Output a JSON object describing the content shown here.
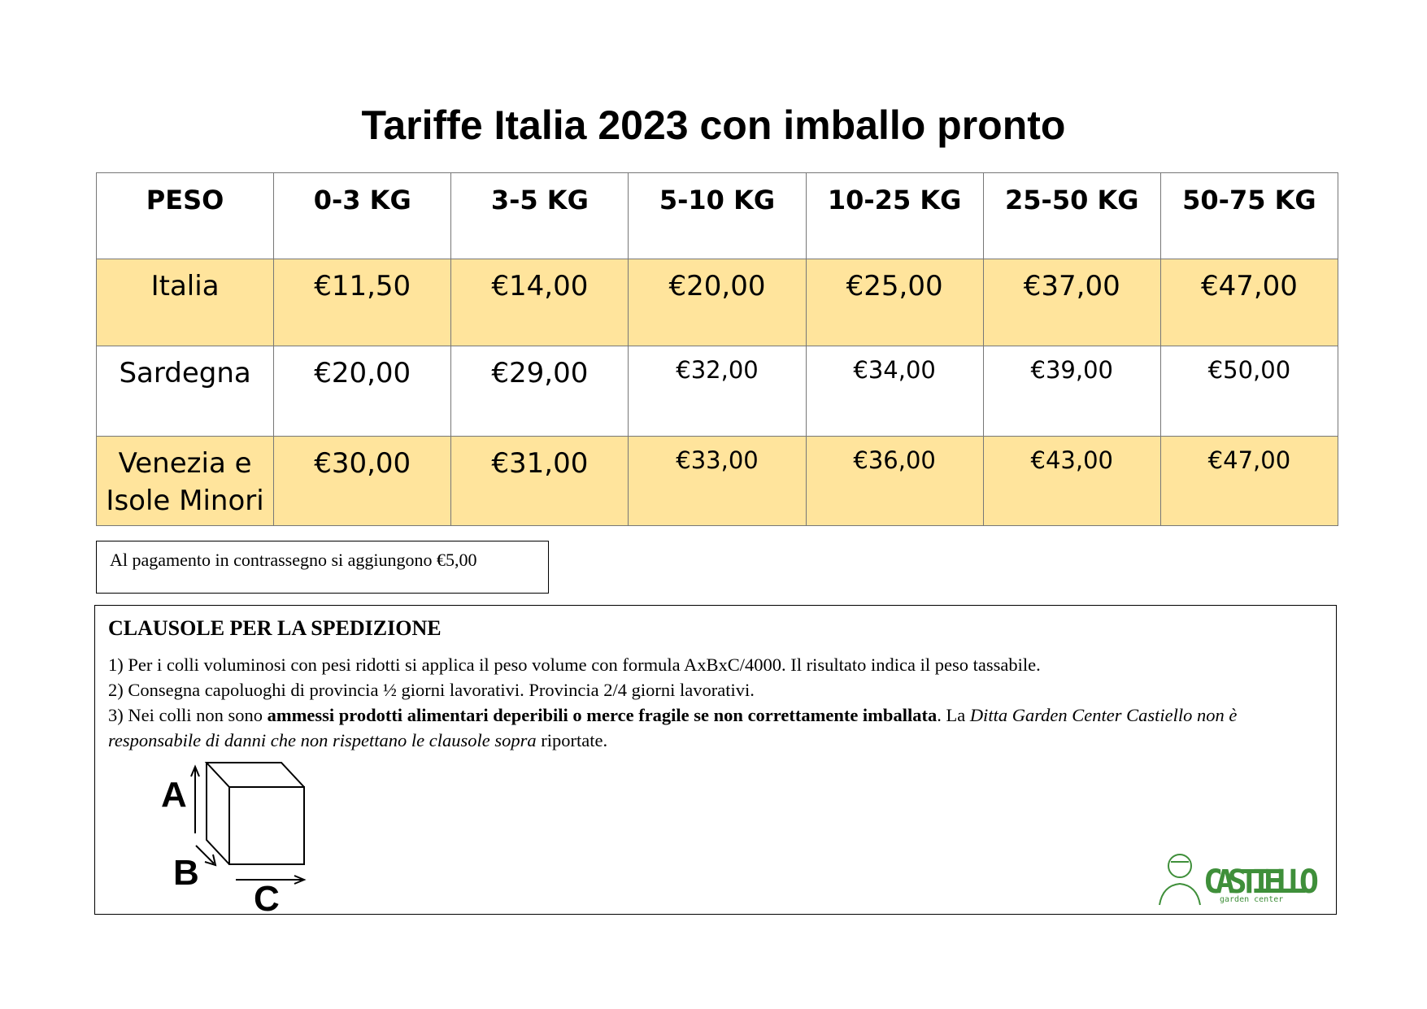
{
  "header": {
    "title": "Tariffe Italia 2023 con imballo pronto"
  },
  "table": {
    "columns": [
      "PESO",
      "0-3 KG",
      "3-5 KG",
      "5-10 KG",
      "10-25 KG",
      "25-50 KG",
      "50-75 KG"
    ],
    "rows": [
      [
        "Italia",
        "€11,50",
        "€14,00",
        "€20,00",
        "€25,00",
        "€37,00",
        "€47,00"
      ],
      [
        "Sardegna",
        "€20,00",
        "€29,00",
        "€32,00",
        "€34,00",
        "€39,00",
        "€50,00"
      ],
      [
        "Venezia e Isole Minori",
        "€30,00",
        "€31,00",
        "€33,00",
        "€36,00",
        "€43,00",
        "€47,00"
      ]
    ]
  },
  "note": "Al pagamento in  contrassegno si aggiungono €5,00",
  "clauses": {
    "title": "CLAUSOLE PER LA SPEDIZIONE",
    "item1": "1) Per i colli voluminosi con pesi ridotti si applica il peso volume con formula AxBxC/4000. Il risultato indica il peso tassabile.",
    "item2": "2) Consegna capoluoghi di provincia ½ giorni lavorativi. Provincia 2/4 giorni lavorativi.",
    "item3": {
      "start": "3) Nei colli non sono ",
      "bold": "ammessi prodotti alimentari deperibili o merce fragile se non correttamente imballata",
      "middle": ". La ",
      "italic": "Ditta Garden Center Castiello non è responsabile di danni che non rispettano le clausole sopra",
      "end": " riportate."
    }
  },
  "diagram": {
    "a": "A",
    "b": "B",
    "c": "C"
  },
  "logo": {
    "name": "CASTIELLO",
    "tagline": "garden center"
  }
}
